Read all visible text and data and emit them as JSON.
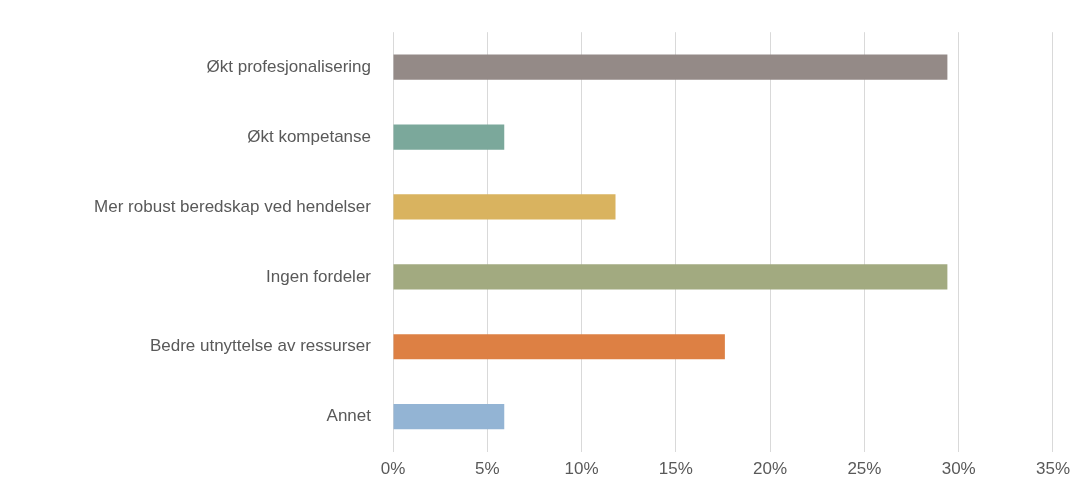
{
  "chart_data": {
    "type": "bar",
    "orientation": "horizontal",
    "categories": [
      "Økt profesjonalisering",
      "Økt kompetanse",
      "Mer robust beredskap ved hendelser",
      "Ingen fordeler",
      "Bedre utnyttelse av ressurser",
      "Annet"
    ],
    "values": [
      29.4,
      5.9,
      11.8,
      29.4,
      17.6,
      5.9
    ],
    "colors": [
      "#948a87",
      "#7ba89b",
      "#d9b35f",
      "#a2aa80",
      "#dd8044",
      "#93b4d4"
    ],
    "xlim": [
      0,
      35
    ],
    "xticks": [
      {
        "value": 0,
        "label": "0%"
      },
      {
        "value": 5,
        "label": "5%"
      },
      {
        "value": 10,
        "label": "10%"
      },
      {
        "value": 15,
        "label": "15%"
      },
      {
        "value": 20,
        "label": "20%"
      },
      {
        "value": 25,
        "label": "25%"
      },
      {
        "value": 30,
        "label": "30%"
      },
      {
        "value": 35,
        "label": "35%"
      }
    ],
    "grid": "x",
    "legend": false
  }
}
